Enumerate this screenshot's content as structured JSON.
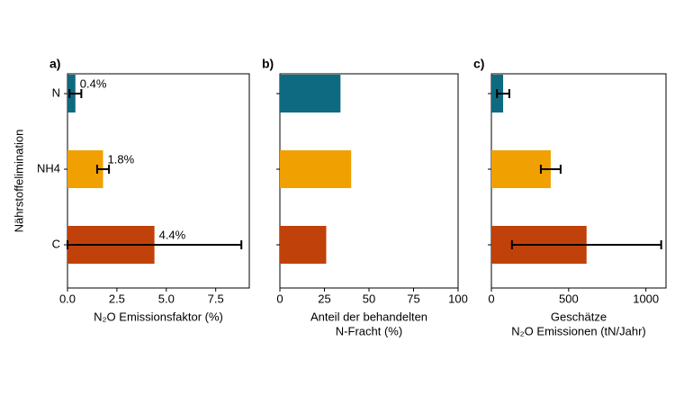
{
  "chart_data": [
    {
      "type": "hbar",
      "title": "a)",
      "ylabel": "Nährstoffelimination",
      "xlabel": [
        "N₂O Emissionsfaktor (%)"
      ],
      "categories": [
        "N",
        "NH4",
        "C"
      ],
      "values": [
        0.4,
        1.8,
        4.4
      ],
      "errors": [
        0.3,
        0.3,
        4.4
      ],
      "value_labels": [
        "0.4%",
        "1.8%",
        "4.4%"
      ],
      "colors": [
        "#0e6a80",
        "#f0a000",
        "#c0410a"
      ],
      "xlim": [
        0,
        9.2
      ],
      "xticks": [
        {
          "value": 0,
          "label": "0.0"
        },
        2.5,
        {
          "value": 5,
          "label": "5.0"
        },
        7.5
      ]
    },
    {
      "type": "hbar",
      "title": "b)",
      "xlabel": [
        "Anteil der behandelten",
        "N-Fracht (%)"
      ],
      "categories": [
        null,
        null,
        null
      ],
      "values": [
        34,
        40,
        26
      ],
      "colors": [
        "#0e6a80",
        "#f0a000",
        "#c0410a"
      ],
      "xlim": [
        0,
        100
      ],
      "xticks": [
        0,
        25,
        50,
        75,
        100
      ]
    },
    {
      "type": "hbar",
      "title": "c)",
      "xlabel": [
        "Geschätze",
        "N₂O Emissionen (tN/Jahr)"
      ],
      "categories": [
        null,
        null,
        null
      ],
      "values": [
        76,
        384,
        616
      ],
      "errors": [
        40,
        64,
        483
      ],
      "colors": [
        "#0e6a80",
        "#f0a000",
        "#c0410a"
      ],
      "xlim": [
        0,
        1130
      ],
      "xticks": [
        0,
        500,
        1000
      ]
    }
  ]
}
